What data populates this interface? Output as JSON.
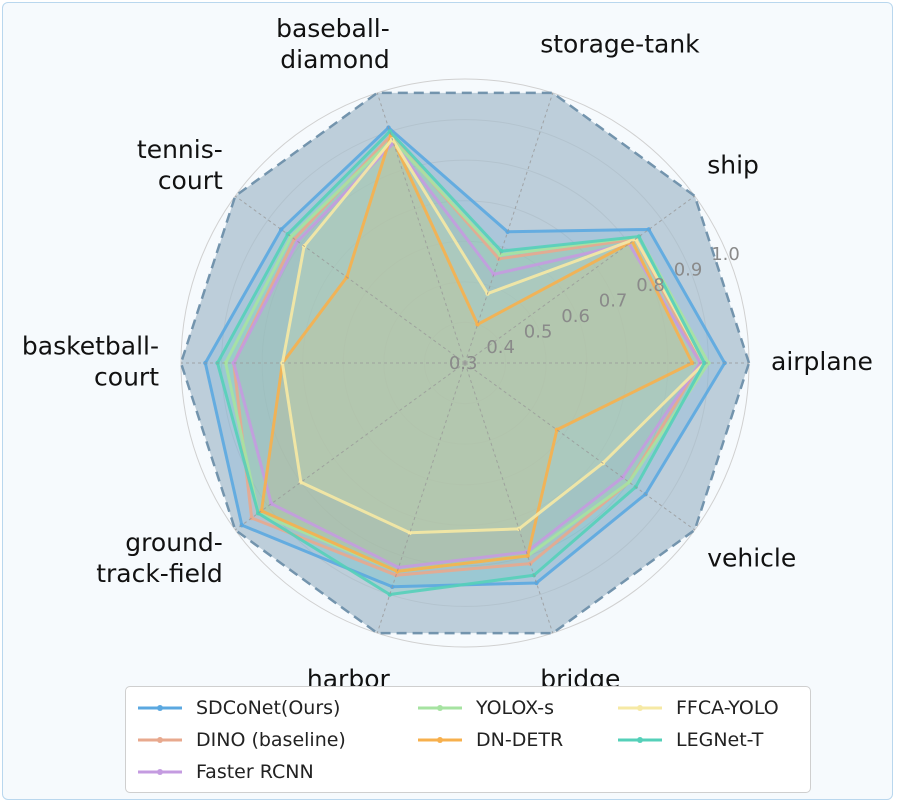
{
  "chart_data": {
    "type": "radar",
    "categories": [
      "airplane",
      "ship",
      "storage-tank",
      "baseball-diamond",
      "tennis-court",
      "basketball-court",
      "ground-track-field",
      "harbor",
      "bridge",
      "vehicle"
    ],
    "category_labels": [
      [
        "airplane"
      ],
      [
        "ship"
      ],
      [
        "storage-tank"
      ],
      [
        "baseball-",
        "diamond"
      ],
      [
        "tennis-",
        "court"
      ],
      [
        "basketball-",
        "court"
      ],
      [
        "ground-",
        "track-field"
      ],
      [
        "harbor"
      ],
      [
        "bridge"
      ],
      [
        "vehicle"
      ]
    ],
    "rlim": [
      0.3,
      1.0
    ],
    "rticks": [
      0.3,
      0.4,
      0.5,
      0.6,
      0.7,
      0.8,
      0.9,
      1.0
    ],
    "rtick_labels": [
      "0.3",
      "0.4",
      "0.5",
      "0.6",
      "0.7",
      "0.8",
      "0.9",
      "1.0"
    ],
    "outer_limit_values": [
      1.0,
      1.0,
      1.0,
      1.0,
      1.0,
      1.0,
      1.0,
      1.0,
      1.0,
      1.0
    ],
    "grid": true,
    "legend_position": "bottom",
    "series": [
      {
        "name": "SDCoNet(Ours)",
        "color": "#5ba8e0",
        "marker": "circle",
        "values": [
          0.94,
          0.86,
          0.64,
          0.91,
          0.86,
          0.94,
          0.98,
          0.88,
          0.87,
          0.85
        ]
      },
      {
        "name": "DINO (baseline)",
        "color": "#e8a98e",
        "marker": "square",
        "values": [
          0.88,
          0.82,
          0.57,
          0.89,
          0.82,
          0.87,
          0.95,
          0.85,
          0.82,
          0.8
        ]
      },
      {
        "name": "Faster RCNN",
        "color": "#c49be0",
        "marker": "triangle",
        "values": [
          0.88,
          0.8,
          0.53,
          0.87,
          0.81,
          0.87,
          0.89,
          0.83,
          0.79,
          0.78
        ]
      },
      {
        "name": "YOLOX-s",
        "color": "#a6e3a1",
        "marker": "diamond",
        "values": [
          0.9,
          0.83,
          0.58,
          0.88,
          0.83,
          0.89,
          0.93,
          0.84,
          0.8,
          0.8
        ]
      },
      {
        "name": "DN-DETR",
        "color": "#f7b04d",
        "marker": "circle",
        "values": [
          0.86,
          0.81,
          0.4,
          0.89,
          0.66,
          0.75,
          0.92,
          0.84,
          0.8,
          0.58
        ]
      },
      {
        "name": "FFCA-YOLO",
        "color": "#f6e9a4",
        "marker": "x",
        "values": [
          0.89,
          0.82,
          0.48,
          0.88,
          0.79,
          0.75,
          0.8,
          0.74,
          0.73,
          0.72
        ]
      },
      {
        "name": "LEGNet-T",
        "color": "#55d0b9",
        "marker": "star",
        "values": [
          0.89,
          0.83,
          0.59,
          0.9,
          0.84,
          0.91,
          0.93,
          0.9,
          0.85,
          0.82
        ]
      }
    ]
  },
  "colors": {
    "outer_fill": "#a9bfce",
    "outer_stroke": "#7394ad",
    "grid": "#d0d0d0",
    "spoke": "#999999"
  }
}
